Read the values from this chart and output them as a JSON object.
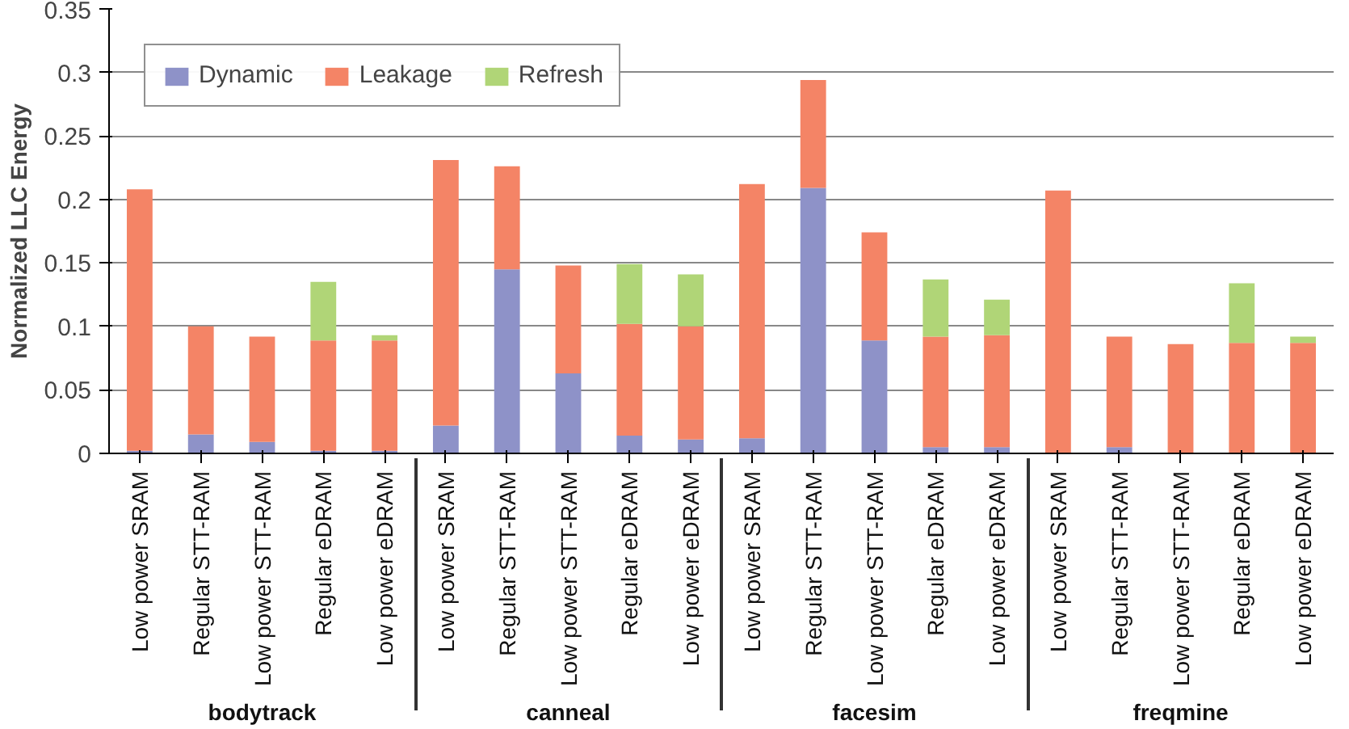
{
  "chart_data": {
    "type": "bar",
    "stacked": true,
    "ylabel": "Normalized LLC Energy",
    "categories": [
      "Low power SRAM",
      "Regular STT-RAM",
      "Low power STT-RAM",
      "Regular eDRAM",
      "Low power eDRAM",
      "Low power SRAM",
      "Regular STT-RAM",
      "Low power STT-RAM",
      "Regular eDRAM",
      "Low power eDRAM",
      "Low power SRAM",
      "Regular STT-RAM",
      "Low power STT-RAM",
      "Regular eDRAM",
      "Low power eDRAM",
      "Low power SRAM",
      "Regular STT-RAM",
      "Low power STT-RAM",
      "Regular eDRAM",
      "Low power eDRAM"
    ],
    "annotations": [
      "bodytrack",
      "canneal",
      "facesim",
      "freqmine"
    ],
    "series": [
      {
        "name": "Dynamic",
        "color": "#8e92c8",
        "values": [
          0.002,
          0.015,
          0.009,
          0.002,
          0.002,
          0.022,
          0.145,
          0.063,
          0.014,
          0.011,
          0.012,
          0.209,
          0.089,
          0.005,
          0.005,
          0.0,
          0.005,
          0.0,
          0.0,
          0.0
        ]
      },
      {
        "name": "Leakage",
        "color": "#f48466",
        "values": [
          0.206,
          0.085,
          0.083,
          0.087,
          0.087,
          0.209,
          0.081,
          0.085,
          0.088,
          0.089,
          0.2,
          0.085,
          0.085,
          0.087,
          0.088,
          0.207,
          0.087,
          0.086,
          0.087,
          0.087
        ]
      },
      {
        "name": "Refresh",
        "color": "#b0d577",
        "values": [
          0.0,
          0.0,
          0.0,
          0.046,
          0.004,
          0.0,
          0.0,
          0.0,
          0.047,
          0.041,
          0.0,
          0.0,
          0.0,
          0.045,
          0.028,
          0.0,
          0.0,
          0.0,
          0.047,
          0.005
        ]
      }
    ],
    "ylim": [
      0,
      0.35
    ],
    "yticks": [
      0,
      0.05,
      0.1,
      0.15,
      0.2,
      0.25,
      0.3,
      0.35
    ],
    "grid": "y",
    "legend": "top left"
  }
}
